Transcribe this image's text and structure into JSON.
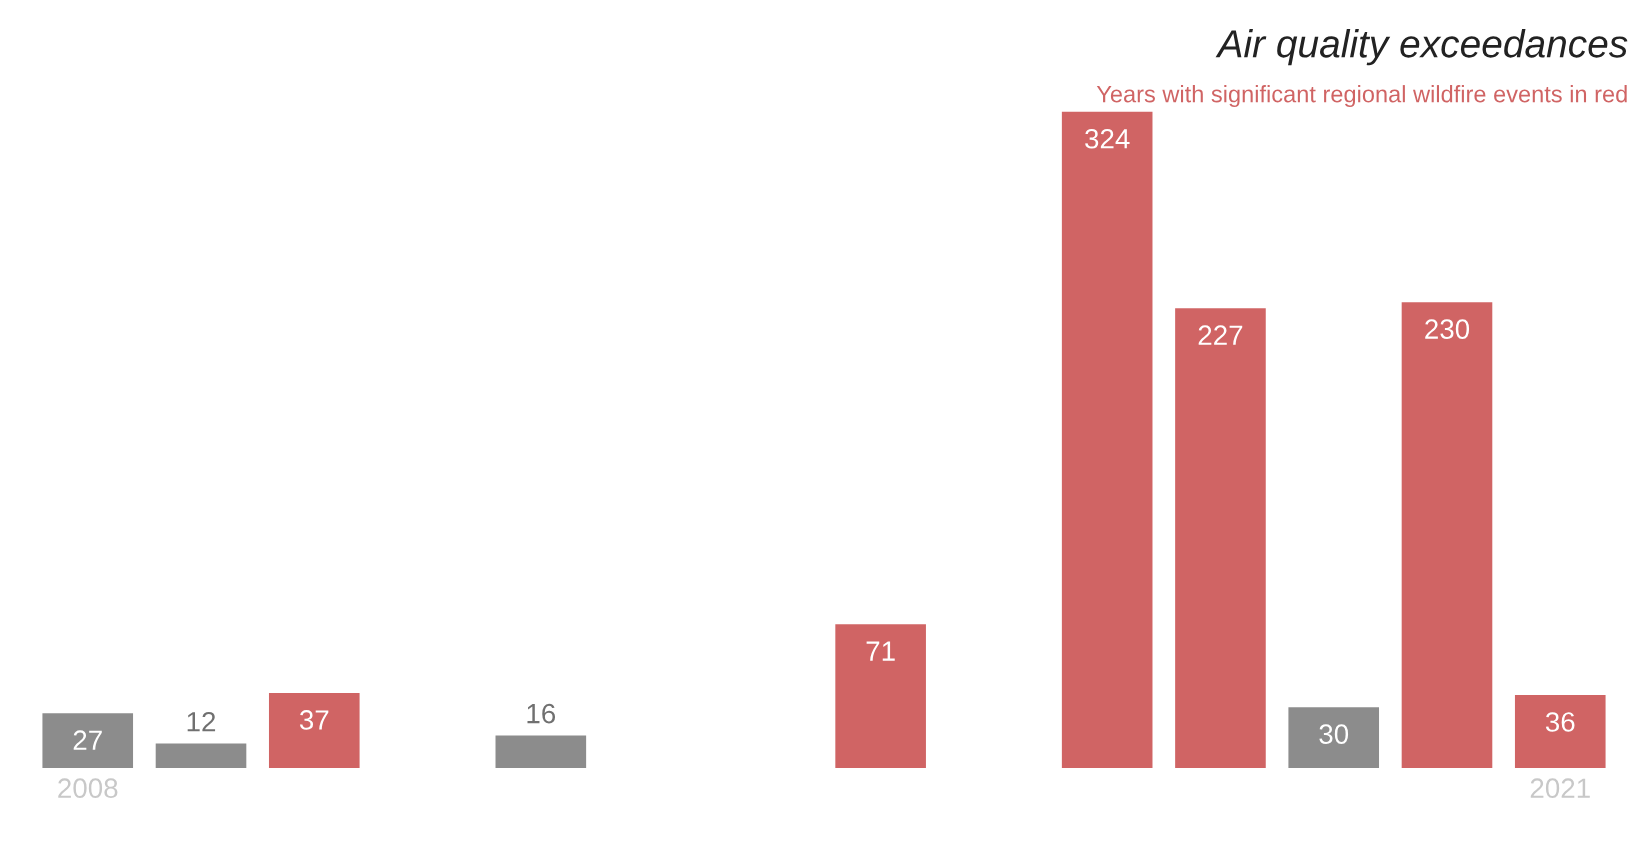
{
  "chart_data": {
    "type": "bar",
    "title": "Air quality exceedances",
    "subtitle": "Years with significant regional wildfire events in red",
    "categories": [
      "2008",
      null,
      null,
      null,
      null,
      null,
      null,
      null,
      null,
      null,
      null,
      null,
      null,
      "2021"
    ],
    "values": [
      27,
      12,
      37,
      null,
      16,
      null,
      null,
      71,
      null,
      324,
      227,
      30,
      230,
      36
    ],
    "colors": [
      "#8c8c8c",
      "#8c8c8c",
      "#d06464",
      null,
      "#8c8c8c",
      null,
      null,
      "#d06464",
      null,
      "#d06464",
      "#d06464",
      "#8c8c8c",
      "#d06464",
      "#d06464"
    ],
    "data_labels": true,
    "grid": false,
    "legend": false
  }
}
